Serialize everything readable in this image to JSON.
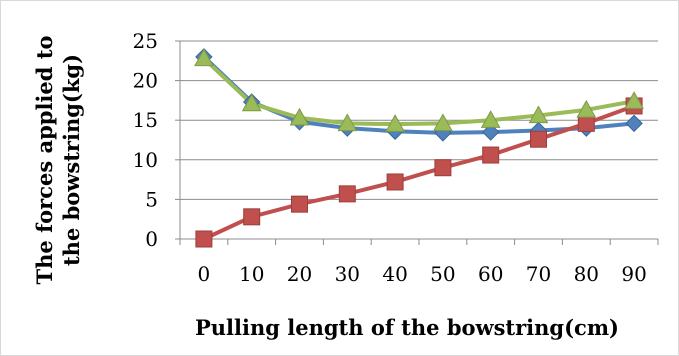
{
  "chart_data": {
    "type": "line",
    "title": "",
    "xlabel": "Pulling length of the bowstring(cm)",
    "ylabel_line1": "The forces applied to",
    "ylabel_line2": "the bowstring(kg)",
    "x": [
      0,
      10,
      20,
      30,
      40,
      50,
      60,
      70,
      80,
      90
    ],
    "ylim": [
      0,
      25
    ],
    "yticks": [
      0,
      5,
      10,
      15,
      20,
      25
    ],
    "grid": true,
    "legend": "none",
    "series": [
      {
        "color": "#4F81BD",
        "marker": "diamond",
        "values": [
          23.0,
          17.3,
          14.8,
          14.0,
          13.6,
          13.4,
          13.5,
          13.7,
          14.0,
          14.6
        ]
      },
      {
        "color": "#C0504D",
        "marker": "square",
        "values": [
          0.0,
          2.8,
          4.4,
          5.7,
          7.2,
          9.0,
          10.6,
          12.6,
          14.6,
          16.8
        ]
      },
      {
        "color": "#9BBB59",
        "marker": "triangle",
        "values": [
          22.8,
          17.1,
          15.3,
          14.6,
          14.5,
          14.6,
          15.0,
          15.6,
          16.3,
          17.4
        ]
      }
    ]
  }
}
